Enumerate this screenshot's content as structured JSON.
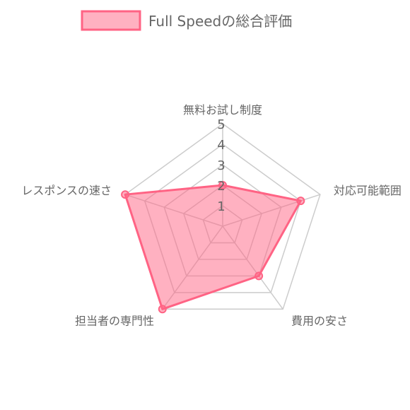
{
  "chart_data": {
    "type": "radar",
    "legend": {
      "label": "Full Speedの総合評価",
      "position": "top"
    },
    "categories": [
      "無料お試し制度",
      "対応可能範囲",
      "費用の安さ",
      "担当者の専門性",
      "レスポンスの速さ"
    ],
    "series": [
      {
        "name": "Full Speedの総合評価",
        "values": [
          2,
          4,
          3,
          5,
          5
        ]
      }
    ],
    "ticks": [
      "1",
      "2",
      "3",
      "4",
      "5"
    ],
    "rlim": [
      0,
      5
    ],
    "grid": true,
    "colors": {
      "fill": "rgba(255, 99, 132, 0.5)",
      "stroke": "#ff6384",
      "grid": "#cccccc",
      "text": "#666666"
    }
  }
}
